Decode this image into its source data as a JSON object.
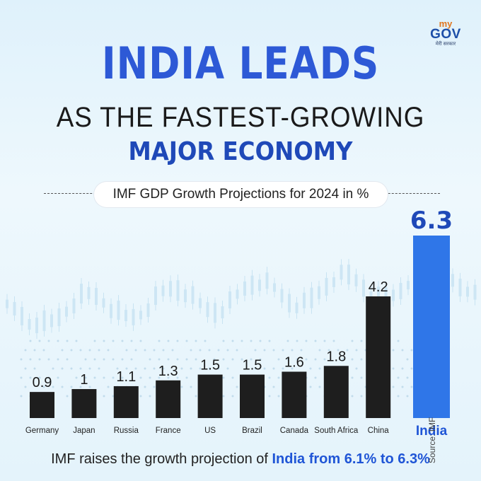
{
  "brand": {
    "logo_my": "my",
    "logo_gov": "GOV",
    "logo_tagline": "मेरी सरकार"
  },
  "headline": {
    "line1": "INDIA LEADS",
    "line2": "AS THE FASTEST-GROWING",
    "line3": "MAJOR ECONOMY"
  },
  "colors": {
    "accent_blue": "#2d59d6",
    "bar_dark": "#1e1e1e",
    "bar_india": "#2f76e8",
    "background": "#e6f4fb"
  },
  "footer": {
    "prefix": "IMF raises the growth projection of ",
    "highlight": "India from 6.1% to 6.3%"
  },
  "source": "Source: IMF",
  "chart_data": {
    "type": "bar",
    "title": "IMF GDP Growth Projections for 2024 in %",
    "categories": [
      "Germany",
      "Japan",
      "Russia",
      "France",
      "US",
      "Brazil",
      "Canada",
      "South Africa",
      "China",
      "India"
    ],
    "values": [
      0.9,
      1,
      1.1,
      1.3,
      1.5,
      1.5,
      1.6,
      1.8,
      4.2,
      6.3
    ],
    "value_labels": [
      "0.9",
      "1",
      "1.1",
      "1.3",
      "1.5",
      "1.5",
      "1.6",
      "1.8",
      "4.2",
      "6.3"
    ],
    "highlight_category": "India",
    "xlabel": "",
    "ylabel": "",
    "ylim": [
      0,
      6.3
    ],
    "grid": false,
    "legend": "none"
  }
}
